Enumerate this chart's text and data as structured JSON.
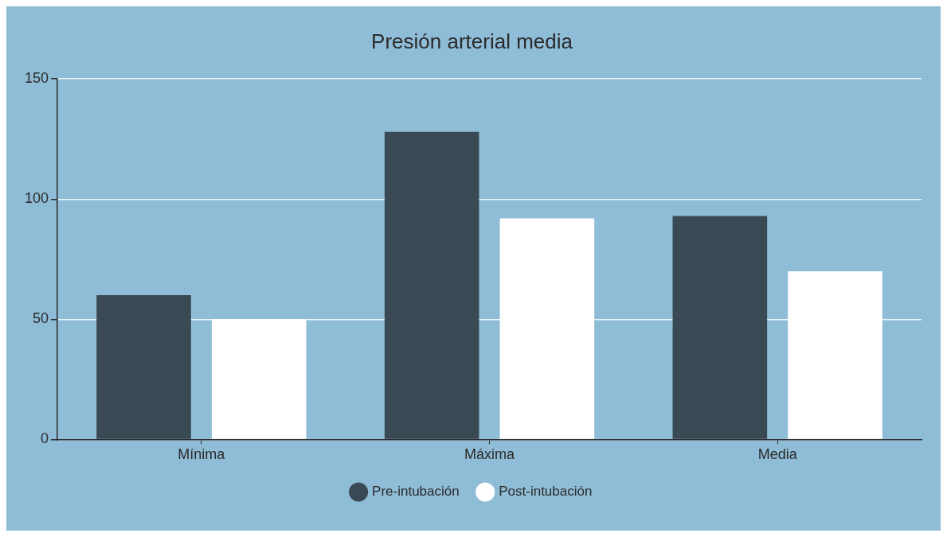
{
  "chart_data": {
    "type": "bar",
    "title": "Presión arterial media",
    "categories": [
      "Mínima",
      "Máxima",
      "Media"
    ],
    "series": [
      {
        "name": "Pre-intubación",
        "color": "#3a4a55",
        "values": [
          60,
          128,
          93
        ]
      },
      {
        "name": "Post-intubación",
        "color": "#ffffff",
        "values": [
          50,
          92,
          70
        ]
      }
    ],
    "ylim": [
      0,
      150
    ],
    "yticks": [
      0,
      50,
      100,
      150
    ],
    "grid": "y",
    "legend": "bottom"
  }
}
